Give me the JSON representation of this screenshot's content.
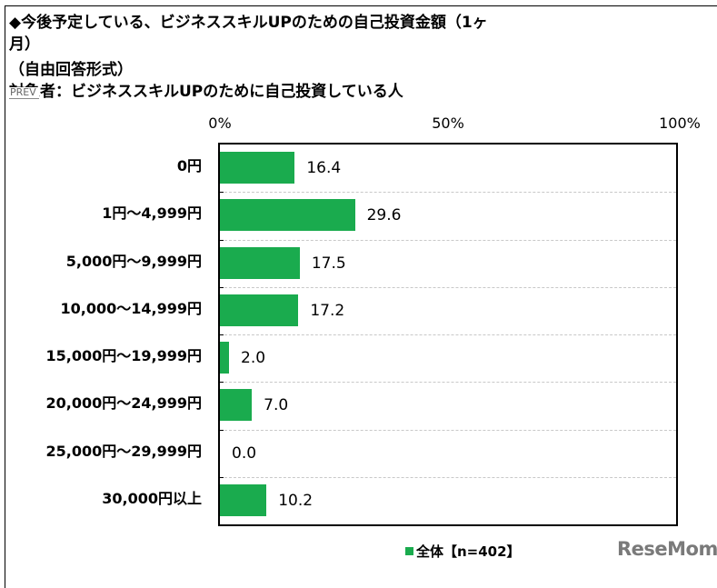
{
  "header": {
    "title_line1": "◆今後予定している、ビジネススキルUPのための自己投資金額（1ヶ",
    "title_line2": "月）",
    "format_note": "（自由回答形式）",
    "target_note": "対象者：ビジネススキルUPのために自己投資している人"
  },
  "nav": {
    "prev_label": "PREV"
  },
  "axis": {
    "ticks": [
      "0%",
      "50%",
      "100%"
    ]
  },
  "colors": {
    "bar": "#1aab4e",
    "logo": "#7a7a7a"
  },
  "legend": {
    "label": "全体【n=402】"
  },
  "branding": {
    "logo_text": "ReseMom"
  },
  "chart_data": {
    "type": "bar",
    "orientation": "horizontal",
    "title": "◆今後予定している、ビジネススキルUPのための自己投資金額（1ヶ月）（自由回答形式）",
    "subtitle": "対象者：ビジネススキルUPのために自己投資している人",
    "categories": [
      "0円",
      "1円～4,999円",
      "5,000円～9,999円",
      "10,000～14,999円",
      "15,000円～19,999円",
      "20,000円～24,999円",
      "25,000円～29,999円",
      "30,000円以上"
    ],
    "series": [
      {
        "name": "全体【n=402】",
        "values": [
          16.4,
          29.6,
          17.5,
          17.2,
          2.0,
          7.0,
          0.0,
          10.2
        ]
      }
    ],
    "value_labels": [
      "16.4",
      "29.6",
      "17.5",
      "17.2",
      "2.0",
      "7.0",
      "0.0",
      "10.2"
    ],
    "xlabel": "",
    "ylabel": "",
    "xlim": [
      0,
      100
    ],
    "x_ticks": [
      "0%",
      "50%",
      "100%"
    ],
    "grid": "horizontal dashed separators",
    "legend_position": "bottom"
  }
}
